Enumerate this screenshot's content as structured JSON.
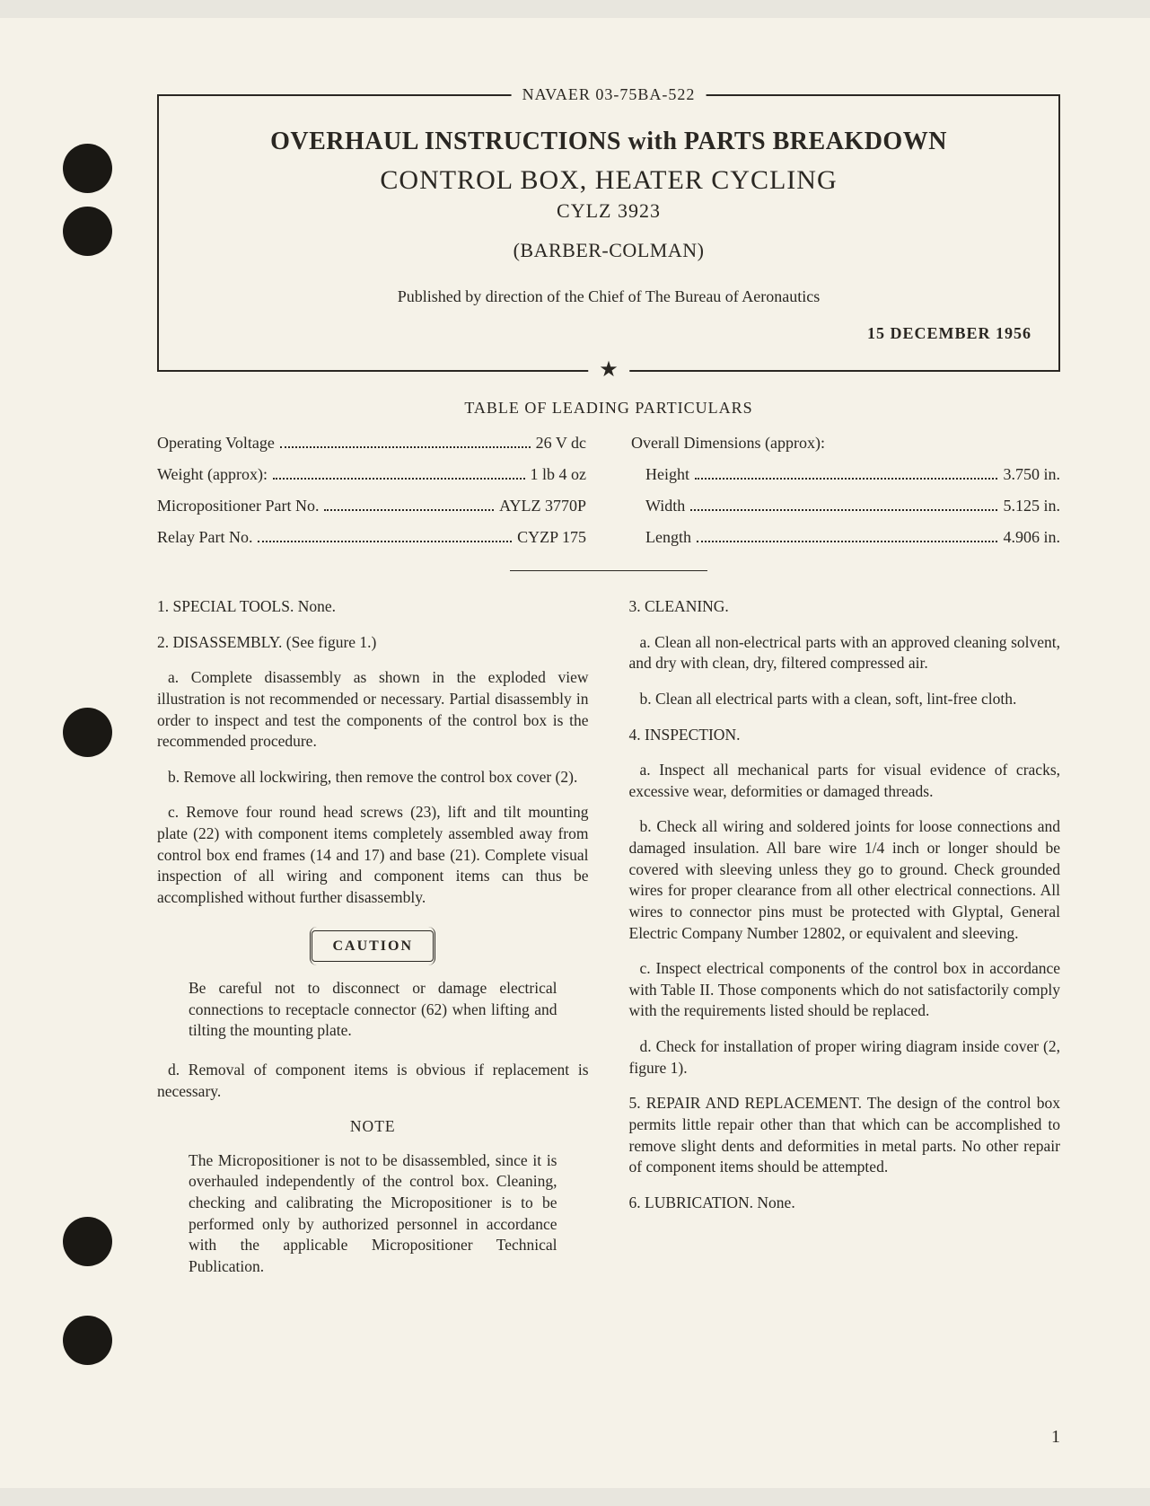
{
  "document": {
    "number": "NAVAER 03-75BA-522",
    "title_main": "OVERHAUL INSTRUCTIONS with PARTS BREAKDOWN",
    "title_sub": "CONTROL BOX, HEATER CYCLING",
    "model": "CYLZ 3923",
    "manufacturer": "(BARBER-COLMAN)",
    "published_by": "Published by direction of the Chief of The Bureau of Aeronautics",
    "date": "15 DECEMBER 1956",
    "star": "★"
  },
  "particulars": {
    "title": "TABLE OF LEADING PARTICULARS",
    "left": [
      {
        "label": "Operating Voltage",
        "value": "26 V dc"
      },
      {
        "label": "Weight (approx):",
        "value": "1 lb 4 oz"
      },
      {
        "label": "Micropositioner Part No.",
        "value": "AYLZ 3770P"
      },
      {
        "label": "Relay Part No.",
        "value": "CYZP 175"
      }
    ],
    "right_header": "Overall Dimensions (approx):",
    "right": [
      {
        "label": "Height",
        "value": "3.750 in."
      },
      {
        "label": "Width",
        "value": "5.125 in."
      },
      {
        "label": "Length",
        "value": "4.906 in."
      }
    ]
  },
  "body": {
    "left": {
      "s1": "1. SPECIAL TOOLS. None.",
      "s2": "2. DISASSEMBLY. (See figure 1.)",
      "s2a": "a. Complete disassembly as shown in the exploded view illustration is not recommended or necessary. Partial disassembly in order to inspect and test the components of the control box is the recommended procedure.",
      "s2b": "b. Remove all lockwiring, then remove the control box cover (2).",
      "s2c": "c. Remove four round head screws (23), lift and tilt mounting plate (22) with component items completely assembled away from control box end frames (14 and 17) and base (21). Complete visual inspection of all wiring and component items can thus be accomplished without further disassembly.",
      "caution_label": "CAUTION",
      "caution_text": "Be careful not to disconnect or damage electrical connections to receptacle connector (62) when lifting and tilting the mounting plate.",
      "s2d": "d. Removal of component items is obvious if replacement is necessary.",
      "note_label": "NOTE",
      "note_text": "The Micropositioner is not to be disassembled, since it is overhauled independently of the control box. Cleaning, checking and calibrating the Micropositioner is to be performed only by authorized personnel in accordance with the applicable Micropositioner Technical Publication."
    },
    "right": {
      "s3": "3. CLEANING.",
      "s3a": "a. Clean all non-electrical parts with an approved cleaning solvent, and dry with clean, dry, filtered compressed air.",
      "s3b": "b. Clean all electrical parts with a clean, soft, lint-free cloth.",
      "s4": "4. INSPECTION.",
      "s4a": "a. Inspect all mechanical parts for visual evidence of cracks, excessive wear, deformities or damaged threads.",
      "s4b": "b. Check all wiring and soldered joints for loose connections and damaged insulation. All bare wire 1/4 inch or longer should be covered with sleeving unless they go to ground. Check grounded wires for proper clearance from all other electrical connections. All wires to connector pins must be protected with Glyptal, General Electric Company Number 12802, or equivalent and sleeving.",
      "s4c": "c. Inspect electrical components of the control box in accordance with Table II. Those components which do not satisfactorily comply with the requirements listed should be replaced.",
      "s4d": "d. Check for installation of proper wiring diagram inside cover (2, figure 1).",
      "s5": "5. REPAIR AND REPLACEMENT.   The design of the control box permits little repair other than that which can be accomplished to remove slight dents and deformities in metal parts.  No other repair of component items should be attempted.",
      "s6": "6. LUBRICATION. None."
    }
  },
  "page_number": "1",
  "colors": {
    "paper": "#f5f2e8",
    "ink": "#2a2722",
    "hole": "#1a1814"
  }
}
